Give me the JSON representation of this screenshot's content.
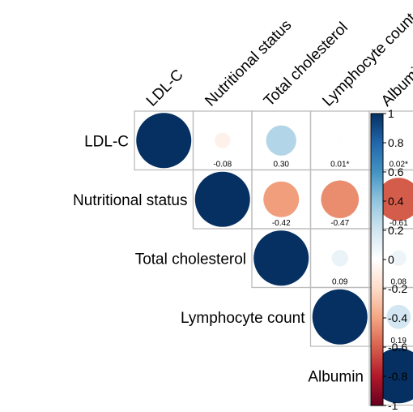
{
  "chart_data": {
    "type": "heatmap",
    "variables": [
      "LDL-C",
      "Nutritional status",
      "Total cholesterol",
      "Lymphocyte count",
      "Albumin"
    ],
    "matrix": [
      [
        1.0,
        -0.08,
        0.3,
        0.01,
        0.02
      ],
      [
        -0.08,
        1.0,
        -0.42,
        -0.47,
        -0.61
      ],
      [
        0.3,
        -0.42,
        1.0,
        0.09,
        0.08
      ],
      [
        0.01,
        -0.47,
        0.09,
        1.0,
        0.19
      ],
      [
        0.02,
        -0.61,
        0.08,
        0.19,
        1.0
      ]
    ],
    "cell_labels": [
      {
        "row": 0,
        "col": 1,
        "text": "-0.08"
      },
      {
        "row": 0,
        "col": 2,
        "text": "0.30"
      },
      {
        "row": 0,
        "col": 3,
        "text": "0.01*"
      },
      {
        "row": 0,
        "col": 4,
        "text": "0.02*"
      },
      {
        "row": 1,
        "col": 2,
        "text": "-0.42"
      },
      {
        "row": 1,
        "col": 3,
        "text": "-0.47"
      },
      {
        "row": 1,
        "col": 4,
        "text": "-0.61"
      },
      {
        "row": 2,
        "col": 3,
        "text": "0.09"
      },
      {
        "row": 2,
        "col": 4,
        "text": "0.08"
      },
      {
        "row": 3,
        "col": 4,
        "text": "0.19"
      }
    ],
    "triangle": "upper",
    "colorbar": {
      "range": [
        -1,
        1
      ],
      "ticks": [
        1,
        0.8,
        0.6,
        0.4,
        0.2,
        0,
        -0.2,
        -0.4,
        -0.6,
        -0.8,
        -1
      ],
      "tick_labels": [
        "1",
        "0.8",
        "0.6",
        "0.4",
        "0.2",
        "0",
        "-0.2",
        "-0.4",
        "-0.6",
        "-0.8",
        "-1"
      ],
      "colors": [
        "#053061",
        "#2166AC",
        "#4393C3",
        "#92C5DE",
        "#D1E5F0",
        "#FFFFFF",
        "#FDDBC7",
        "#F4A582",
        "#D6604D",
        "#B2182B",
        "#67001F"
      ],
      "placement": "right"
    }
  }
}
